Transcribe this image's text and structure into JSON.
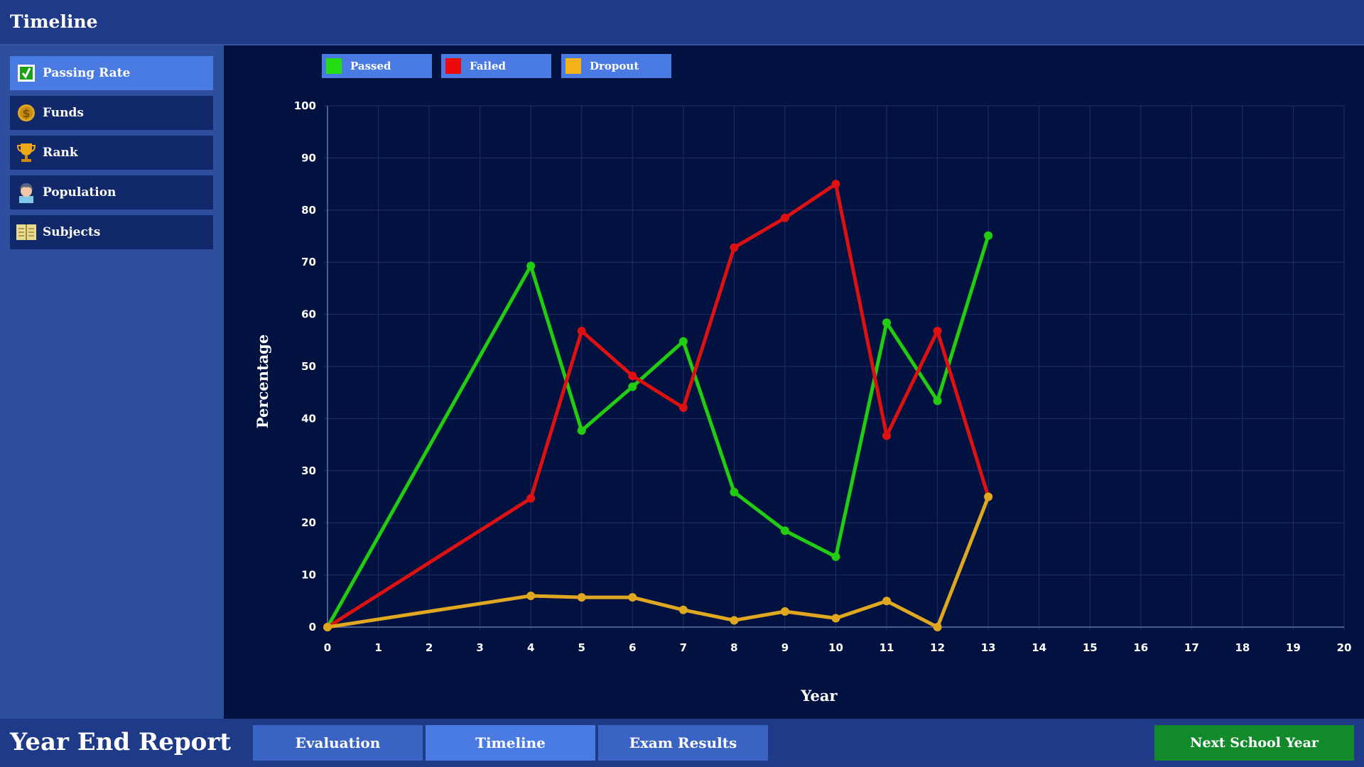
{
  "header": {
    "title": "Timeline"
  },
  "sidebar": {
    "items": [
      {
        "label": "Passing Rate",
        "icon": "checkbox-icon",
        "active": true
      },
      {
        "label": "Funds",
        "icon": "coin-icon"
      },
      {
        "label": "Rank",
        "icon": "trophy-icon"
      },
      {
        "label": "Population",
        "icon": "student-icon"
      },
      {
        "label": "Subjects",
        "icon": "book-icon"
      }
    ]
  },
  "legend": [
    {
      "label": "Passed",
      "color": "#22dd11"
    },
    {
      "label": "Failed",
      "color": "#ee0a0a"
    },
    {
      "label": "Dropout",
      "color": "#f5b21a"
    }
  ],
  "chart_data": {
    "type": "line",
    "xlabel": "Year",
    "ylabel": "Percentage",
    "xlim": [
      0,
      20
    ],
    "ylim": [
      0,
      100
    ],
    "x_ticks": [
      0,
      1,
      2,
      3,
      4,
      5,
      6,
      7,
      8,
      9,
      10,
      11,
      12,
      13,
      14,
      15,
      16,
      17,
      18,
      19,
      20
    ],
    "y_ticks": [
      0,
      10,
      20,
      30,
      40,
      50,
      60,
      70,
      80,
      90,
      100
    ],
    "grid": true,
    "legend_position": "top-left",
    "x": [
      0,
      4,
      5,
      6,
      7,
      8,
      9,
      10,
      11,
      12,
      13
    ],
    "series": [
      {
        "name": "Passed",
        "color": "#22cc11",
        "values": [
          0,
          69.3,
          37.7,
          46.1,
          54.8,
          25.9,
          18.5,
          13.5,
          58.4,
          43.4,
          75.1
        ]
      },
      {
        "name": "Failed",
        "color": "#dd1111",
        "values": [
          0,
          24.7,
          56.8,
          48.2,
          42.1,
          72.8,
          78.5,
          85.0,
          36.7,
          56.8,
          25.0
        ]
      },
      {
        "name": "Dropout",
        "color": "#e0a820",
        "values": [
          0,
          6.0,
          5.7,
          5.7,
          3.3,
          1.3,
          3.0,
          1.7,
          5.0,
          0,
          25.0
        ]
      }
    ]
  },
  "bottom": {
    "title": "Year End Report",
    "tabs": [
      {
        "label": "Evaluation"
      },
      {
        "label": "Timeline",
        "active": true
      },
      {
        "label": "Exam Results"
      }
    ],
    "next_label": "Next School Year"
  }
}
